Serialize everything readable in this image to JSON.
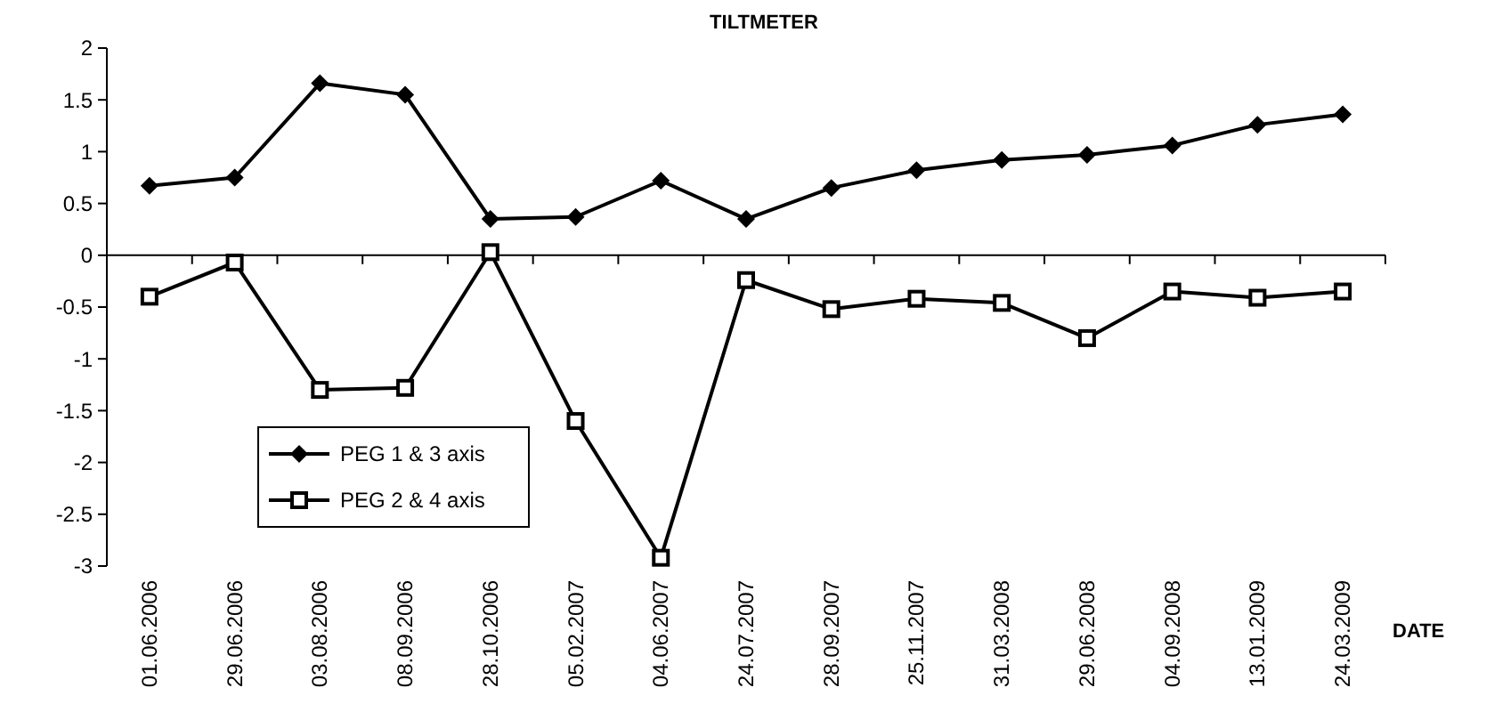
{
  "chart_data": {
    "type": "line",
    "title": "TILTMETER",
    "xlabel": "DATE",
    "categories": [
      "01.06.2006",
      "29.06.2006",
      "03.08.2006",
      "08.09.2006",
      "28.10.2006",
      "05.02.2007",
      "04.06.2007",
      "24.07.2007",
      "28.09.2007",
      "25.11.2007",
      "31.03.2008",
      "29.06.2008",
      "04.09.2008",
      "13.01.2009",
      "24.03.2009"
    ],
    "series": [
      {
        "name": "PEG 1 & 3 axis",
        "color": "#000000",
        "marker": "diamond",
        "values": [
          0.67,
          0.75,
          1.66,
          1.55,
          0.35,
          0.37,
          0.72,
          0.35,
          0.65,
          0.82,
          0.92,
          0.97,
          1.06,
          1.26,
          1.36
        ]
      },
      {
        "name": "PEG 2 & 4 axis",
        "color": "#000000",
        "marker": "square",
        "values": [
          -0.4,
          -0.07,
          -1.3,
          -1.28,
          0.03,
          -1.6,
          -2.92,
          -0.24,
          -0.52,
          -0.42,
          -0.46,
          -0.8,
          -0.35,
          -0.41,
          -0.35
        ]
      }
    ],
    "ylim": [
      -3,
      2
    ],
    "yticks": [
      -3,
      -2.5,
      -2,
      -1.5,
      -1,
      -0.5,
      0,
      0.5,
      1,
      1.5,
      2
    ],
    "legend": "bottom left",
    "line_style": "solid"
  }
}
